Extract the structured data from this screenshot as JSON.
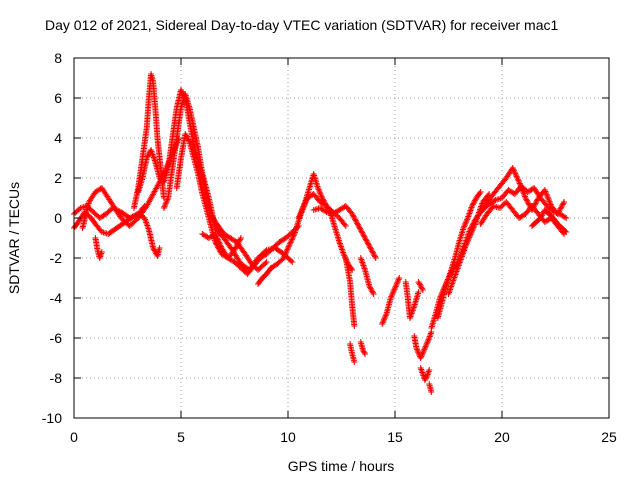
{
  "chart_data": {
    "type": "scatter",
    "title": "Day 012 of 2021, Sidereal Day-to-day VTEC variation (SDTVAR) for receiver mac1",
    "xlabel": "GPS time / hours",
    "ylabel": "SDTVAR / TECUs",
    "xlim": [
      0,
      25
    ],
    "ylim": [
      -10,
      8
    ],
    "xticks": [
      0,
      5,
      10,
      15,
      20,
      25
    ],
    "yticks": [
      -10,
      -8,
      -6,
      -4,
      -2,
      0,
      2,
      4,
      6,
      8
    ],
    "grid": true,
    "marker": "plus",
    "series": [
      {
        "name": "SDTVAR",
        "color": "#ff0000",
        "traces": [
          {
            "x": [
              0.0,
              0.2,
              0.5,
              0.8,
              1.0,
              1.3,
              1.6,
              2.0,
              2.4,
              2.8,
              3.0,
              3.3,
              3.5,
              3.7,
              3.9,
              4.0
            ],
            "y": [
              -0.5,
              -0.2,
              0.3,
              0.0,
              -0.3,
              -0.7,
              -0.8,
              -0.5,
              -0.2,
              0.1,
              0.2,
              0.0,
              -0.6,
              -1.5,
              -1.9,
              -1.5
            ]
          },
          {
            "x": [
              0.0,
              0.3,
              0.6,
              0.9,
              1.2,
              1.5,
              1.8,
              2.2,
              2.6,
              3.0,
              3.3
            ],
            "y": [
              0.2,
              0.5,
              0.6,
              0.3,
              0.0,
              0.2,
              0.5,
              0.3,
              0.0,
              0.2,
              0.6
            ]
          },
          {
            "x": [
              0.4,
              0.7,
              1.0,
              1.3,
              1.6,
              1.9,
              2.2,
              2.6,
              3.0,
              3.4,
              3.8,
              4.2,
              4.6,
              4.9
            ],
            "y": [
              -0.5,
              0.8,
              1.3,
              1.5,
              1.0,
              0.5,
              0.0,
              -0.4,
              0.0,
              0.6,
              1.4,
              2.2,
              3.2,
              4.0
            ]
          },
          {
            "x": [
              1.0,
              1.1,
              1.2,
              1.3
            ],
            "y": [
              -1.0,
              -1.6,
              -2.0,
              -1.7
            ]
          },
          {
            "x": [
              2.8,
              3.0,
              3.2,
              3.4,
              3.5,
              3.6,
              3.7,
              3.8,
              3.9,
              4.0,
              4.1,
              4.2
            ],
            "y": [
              0.5,
              1.5,
              3.0,
              4.5,
              6.0,
              7.2,
              6.8,
              5.5,
              4.0,
              3.0,
              2.0,
              1.0
            ]
          },
          {
            "x": [
              3.0,
              3.2,
              3.4,
              3.6,
              3.8,
              4.0,
              4.2,
              4.4,
              4.6,
              4.8,
              5.0,
              5.2,
              5.4,
              5.6,
              5.8,
              6.0,
              6.2,
              6.4,
              6.6,
              6.8,
              7.0,
              7.3,
              7.6,
              8.0,
              8.3,
              8.6,
              9.0
            ],
            "y": [
              1.3,
              2.0,
              3.0,
              3.4,
              2.8,
              2.0,
              1.8,
              2.5,
              4.0,
              5.5,
              6.4,
              6.0,
              4.8,
              3.6,
              2.8,
              2.0,
              1.0,
              0.2,
              -0.2,
              -0.5,
              -0.8,
              -1.0,
              -1.2,
              -1.8,
              -2.3,
              -2.6,
              -2.2
            ]
          },
          {
            "x": [
              4.2,
              4.4,
              4.6,
              4.8,
              5.0,
              5.2,
              5.4,
              5.6,
              5.8,
              6.0,
              6.3,
              6.6,
              7.0,
              7.4,
              7.8,
              8.2,
              8.6,
              9.0,
              9.4,
              9.8,
              10.2
            ],
            "y": [
              0.5,
              1.0,
              2.5,
              4.0,
              5.5,
              6.2,
              5.5,
              4.5,
              3.5,
              2.2,
              1.0,
              -0.5,
              -1.0,
              -1.6,
              -2.3,
              -2.6,
              -2.0,
              -1.6,
              -1.5,
              -1.8,
              -2.2
            ]
          },
          {
            "x": [
              4.8,
              5.0,
              5.2,
              5.4,
              5.6,
              5.8,
              6.0,
              6.2,
              6.4,
              6.6,
              6.9,
              7.2,
              7.5,
              7.8
            ],
            "y": [
              1.5,
              3.0,
              4.2,
              3.8,
              3.0,
              2.2,
              1.2,
              0.4,
              -0.4,
              -1.2,
              -1.8,
              -2.0,
              -1.6,
              -1.0
            ]
          },
          {
            "x": [
              6.0,
              6.3,
              6.6,
              6.9,
              7.2,
              7.5,
              7.8,
              8.1,
              8.4,
              8.7,
              9.0,
              9.3,
              9.6,
              9.9,
              10.2,
              10.5
            ],
            "y": [
              -0.8,
              -1.0,
              -0.8,
              -1.5,
              -2.0,
              -2.2,
              -2.5,
              -2.8,
              -2.4,
              -2.0,
              -1.8,
              -1.5,
              -1.2,
              -1.0,
              -0.7,
              -0.4
            ]
          },
          {
            "x": [
              8.6,
              8.8,
              9.0,
              9.2
            ],
            "y": [
              -3.3,
              -3.0,
              -2.8,
              -2.5
            ]
          },
          {
            "x": [
              9.2,
              9.5,
              9.8,
              10.0,
              10.3,
              10.6,
              10.9,
              11.2,
              11.5,
              11.8,
              12.1,
              12.4,
              12.7
            ],
            "y": [
              -2.5,
              -2.3,
              -2.0,
              -1.5,
              -0.8,
              0.2,
              1.0,
              1.2,
              0.8,
              0.6,
              0.3,
              0.0,
              -0.4
            ]
          },
          {
            "x": [
              10.5,
              10.8,
              11.0,
              11.2,
              11.4,
              11.6,
              11.8,
              12.0,
              12.2,
              12.4,
              12.6,
              12.8,
              13.0
            ],
            "y": [
              0.0,
              0.8,
              1.5,
              2.2,
              1.5,
              1.0,
              0.6,
              0.2,
              -0.5,
              -1.2,
              -1.8,
              -2.3,
              -2.6
            ]
          },
          {
            "x": [
              11.2,
              11.5,
              11.8,
              12.1,
              12.4,
              12.7,
              13.0,
              13.3,
              13.6,
              13.9,
              14.1
            ],
            "y": [
              0.4,
              0.5,
              0.3,
              0.2,
              0.4,
              0.6,
              0.2,
              -0.4,
              -1.0,
              -1.6,
              -2.0
            ]
          },
          {
            "x": [
              12.7,
              12.9,
              13.0,
              13.1
            ],
            "y": [
              -2.0,
              -3.2,
              -4.4,
              -5.4
            ]
          },
          {
            "x": [
              12.9,
              13.0,
              13.1
            ],
            "y": [
              -6.3,
              -6.8,
              -7.2
            ]
          },
          {
            "x": [
              13.4,
              13.5,
              13.6
            ],
            "y": [
              -6.2,
              -6.6,
              -6.8
            ]
          },
          {
            "x": [
              13.4,
              13.6,
              13.8,
              14.0
            ],
            "y": [
              -2.0,
              -2.6,
              -3.4,
              -3.8
            ]
          },
          {
            "x": [
              14.4,
              14.6,
              14.8,
              15.0,
              15.2
            ],
            "y": [
              -5.3,
              -4.8,
              -4.0,
              -3.5,
              -3.0
            ]
          },
          {
            "x": [
              15.5,
              15.6,
              15.7,
              15.9,
              16.1
            ],
            "y": [
              -3.2,
              -4.0,
              -5.0,
              -4.4,
              -3.7
            ]
          },
          {
            "x": [
              15.9,
              16.0,
              16.2,
              16.4,
              16.6,
              16.7
            ],
            "y": [
              -5.9,
              -6.5,
              -7.0,
              -6.5,
              -6.0,
              -5.7
            ]
          },
          {
            "x": [
              16.1,
              16.2,
              16.3
            ],
            "y": [
              -3.2,
              -3.4,
              -3.6
            ]
          },
          {
            "x": [
              16.6,
              16.7
            ],
            "y": [
              -8.3,
              -8.7
            ]
          },
          {
            "x": [
              16.2,
              16.3,
              16.4,
              16.5,
              16.6
            ],
            "y": [
              -7.5,
              -7.8,
              -8.1,
              -7.9,
              -7.6
            ]
          },
          {
            "x": [
              16.7,
              16.9,
              17.1,
              17.3,
              17.5,
              17.7,
              17.9,
              18.1,
              18.3,
              18.5,
              18.8,
              19.1,
              19.4,
              19.7,
              20.0
            ],
            "y": [
              -5.5,
              -4.8,
              -4.0,
              -3.5,
              -3.0,
              -2.6,
              -2.3,
              -1.8,
              -1.2,
              -0.6,
              0.0,
              0.4,
              0.7,
              0.9,
              1.0
            ]
          },
          {
            "x": [
              17.0,
              17.2,
              17.4,
              17.6,
              17.8,
              18.0,
              18.2,
              18.4,
              18.6,
              18.8,
              19.0
            ],
            "y": [
              -5.0,
              -4.2,
              -3.3,
              -2.7,
              -2.0,
              -1.2,
              -0.5,
              0.0,
              0.6,
              1.0,
              1.3
            ]
          },
          {
            "x": [
              17.5,
              17.7,
              17.9,
              18.1,
              18.3,
              18.5,
              18.7,
              18.9,
              19.1,
              19.4
            ],
            "y": [
              -3.8,
              -3.2,
              -2.6,
              -2.0,
              -1.4,
              -0.9,
              -0.4,
              0.2,
              0.8,
              1.2
            ]
          },
          {
            "x": [
              19.0,
              19.3,
              19.6,
              19.9,
              20.2,
              20.5,
              20.8,
              21.1,
              21.4,
              21.7,
              22.0,
              22.3,
              22.6,
              22.9
            ],
            "y": [
              0.3,
              0.8,
              1.2,
              1.6,
              2.0,
              2.5,
              1.8,
              1.0,
              0.4,
              1.0,
              1.4,
              0.6,
              0.2,
              0.8
            ]
          },
          {
            "x": [
              19.0,
              19.3,
              19.6,
              19.9,
              20.2,
              20.5,
              20.8,
              21.1,
              21.4,
              21.7,
              22.0,
              22.3,
              22.6,
              22.9
            ],
            "y": [
              -0.3,
              0.2,
              0.6,
              0.5,
              0.8,
              0.4,
              0.0,
              0.2,
              0.6,
              0.2,
              -0.2,
              0.0,
              -0.4,
              -0.8
            ]
          },
          {
            "x": [
              20.0,
              20.3,
              20.6,
              20.9,
              21.2,
              21.5,
              21.8,
              22.1,
              22.4,
              22.7,
              23.0
            ],
            "y": [
              1.0,
              1.4,
              1.2,
              1.6,
              1.3,
              1.5,
              1.0,
              0.6,
              0.3,
              0.2,
              0.0
            ]
          },
          {
            "x": [
              21.4,
              21.6,
              21.8,
              22.0,
              22.2,
              22.4,
              22.6,
              22.8,
              23.0
            ],
            "y": [
              -0.4,
              -0.2,
              0.0,
              0.4,
              0.2,
              0.0,
              -0.3,
              -0.5,
              -0.7
            ]
          }
        ]
      }
    ]
  }
}
